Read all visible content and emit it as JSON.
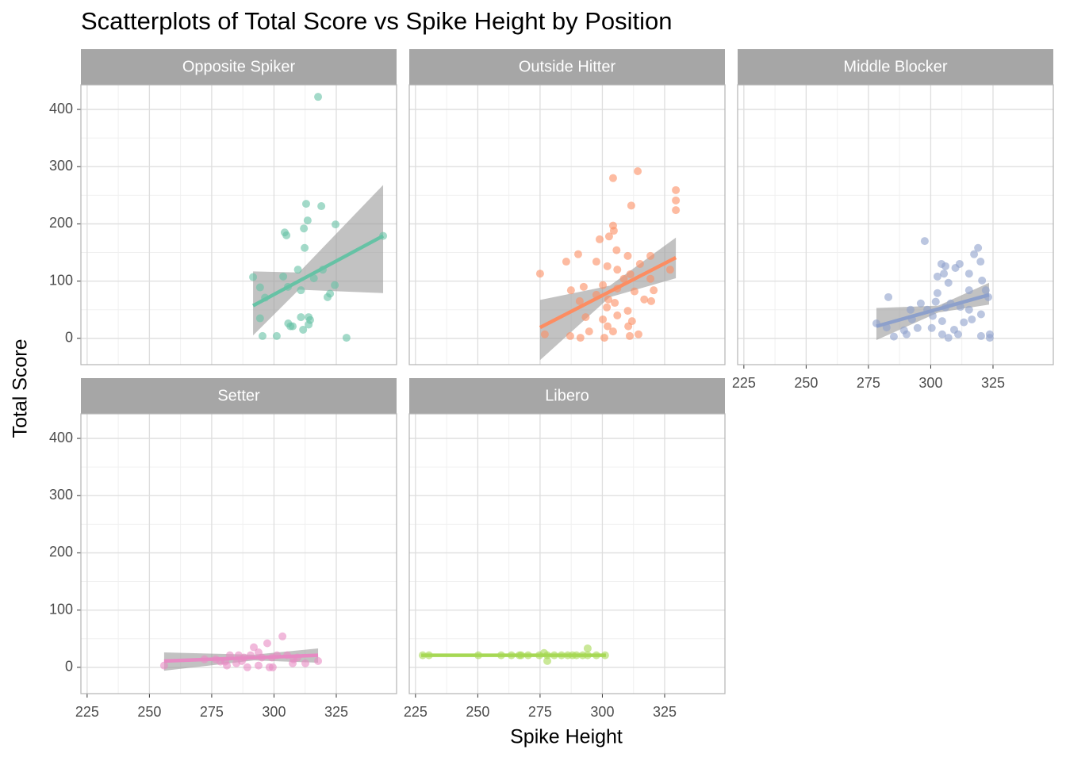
{
  "title": "Scatterplots of Total Score vs Spike Height by Position",
  "x_label": "Spike Height",
  "y_label": "Total Score",
  "chart_data": [
    {
      "type": "scatter",
      "title": "Opposite Spiker",
      "color": "#66c2a5",
      "x": [
        317.7,
        312.9,
        319,
        313.5,
        312,
        304.3,
        305,
        324.7,
        343.8,
        312.3,
        291.6,
        294.4,
        296.4,
        303.7,
        309.6,
        319.6,
        316,
        310.8,
        305.6,
        324.4,
        322.5,
        321.5,
        294.4,
        313.9,
        314.5,
        310.8,
        305.7,
        306.6,
        307.5,
        313.9,
        311.7,
        295.4,
        301.1,
        329.1
      ],
      "y": [
        422,
        235,
        231,
        206,
        192,
        185,
        180,
        199,
        179,
        158,
        107,
        89,
        71,
        108,
        120,
        120,
        105,
        84,
        90,
        93,
        78,
        72,
        35,
        37,
        32,
        37,
        26,
        21,
        21,
        24,
        15,
        4,
        4,
        1
      ],
      "fit": {
        "x": [
          291.6,
          343.8
        ],
        "y": [
          57,
          179
        ]
      },
      "band": {
        "x": [
          291.6,
          310,
          343.8
        ],
        "lower": [
          5,
          85,
          79
        ],
        "upper": [
          117,
          115,
          268
        ]
      },
      "xlim": [
        222.5,
        349.2
      ],
      "ylim": [
        -46,
        443
      ],
      "xticks": [
        225,
        250,
        275,
        300,
        325
      ],
      "yticks": [
        0,
        100,
        200,
        300,
        400
      ],
      "grid": true
    },
    {
      "type": "scatter",
      "title": "Outside Hitter",
      "color": "#fc8d62",
      "x": [
        314.2,
        304.3,
        329.5,
        329.5,
        329.5,
        311.6,
        304.3,
        304.6,
        302.7,
        298.9,
        290.3,
        297.6,
        285.5,
        305.7,
        310.2,
        319.3,
        315.1,
        275,
        302,
        306,
        311.2,
        308.6,
        300.2,
        292.5,
        306,
        319.3,
        320.6,
        312.9,
        316.8,
        319.6,
        297.6,
        302.4,
        287.4,
        305,
        301.8,
        290.9,
        310.2,
        306,
        293.3,
        300.2,
        311.9,
        294.7,
        304.3,
        302.1,
        310.4,
        276.9,
        287.1,
        291.2,
        300.8,
        311,
        314.5,
        327.2
      ],
      "y": [
        292,
        280,
        259,
        241,
        224,
        232,
        197,
        188,
        178,
        173,
        147,
        134,
        134,
        154,
        144,
        144,
        130,
        113,
        126,
        120,
        112,
        104,
        93,
        90,
        87,
        104,
        84,
        82,
        68,
        65,
        76,
        68,
        84,
        62,
        54,
        65,
        48,
        40,
        37,
        33,
        30,
        12,
        12,
        21,
        21,
        7,
        4,
        1,
        1,
        4,
        7,
        120
      ],
      "fit": {
        "x": [
          275,
          329.5
        ],
        "y": [
          19,
          141
        ]
      },
      "band": {
        "x": [
          275,
          303,
          329.5
        ],
        "lower": [
          -38,
          72,
          105
        ],
        "upper": [
          67,
          92,
          176
        ]
      },
      "xlim": [
        222.5,
        349.2
      ],
      "ylim": [
        -46,
        443
      ],
      "xticks": [
        225,
        250,
        275,
        300,
        325
      ],
      "yticks": [
        0,
        100,
        200,
        300,
        400
      ],
      "grid": true
    },
    {
      "type": "scatter",
      "title": "Middle Blocker",
      "color": "#8da0cb",
      "x": [
        297.6,
        319,
        317.4,
        320,
        304.3,
        305.9,
        311.6,
        305.3,
        315.4,
        309.9,
        302.7,
        320.6,
        307.1,
        315.4,
        322.1,
        283,
        302.7,
        296,
        302,
        308,
        311.9,
        323.1,
        291.9,
        298.6,
        305.9,
        315.4,
        320.2,
        292.5,
        300.8,
        304.6,
        313.3,
        316.5,
        278.2,
        282.3,
        289.3,
        294.7,
        300.4,
        309.4,
        285.2,
        290.3,
        304.6,
        307.1,
        311,
        320.2,
        323.7,
        323.7
      ],
      "y": [
        170,
        158,
        147,
        134,
        130,
        126,
        130,
        113,
        113,
        123,
        108,
        101,
        97,
        84,
        84,
        72,
        79,
        61,
        64,
        61,
        55,
        72,
        50,
        50,
        54,
        50,
        42,
        33,
        39,
        30,
        28,
        33,
        26,
        19,
        14,
        18,
        18,
        15,
        3,
        7,
        7,
        1,
        7,
        4,
        7,
        1
      ],
      "fit": {
        "x": [
          278.2,
          323.4
        ],
        "y": [
          21,
          76
        ]
      },
      "band": {
        "x": [
          278.2,
          303,
          323.4
        ],
        "lower": [
          -3,
          45,
          59
        ],
        "upper": [
          53,
          57,
          97
        ]
      },
      "xlim": [
        222.5,
        349.2
      ],
      "ylim": [
        -46,
        443
      ],
      "xticks": [
        225,
        250,
        275,
        300,
        325
      ],
      "yticks": [
        0,
        100,
        200,
        300,
        400
      ],
      "grid": true
    },
    {
      "type": "scatter",
      "title": "Setter",
      "color": "#e78ac3",
      "x": [
        255.9,
        272.1,
        276.6,
        282.3,
        280.4,
        278.5,
        284.9,
        281.1,
        288,
        290.6,
        291.9,
        293.8,
        297.3,
        303.4,
        295.1,
        299.2,
        301.2,
        305.3,
        307.8,
        309.4,
        317.7,
        312.6,
        307.5,
        298.2,
        299.5,
        289.3,
        293.8,
        285.8,
        287.1
      ],
      "y": [
        3,
        14,
        14,
        21,
        10,
        10,
        7,
        3,
        17,
        21,
        35,
        26,
        42,
        54,
        17,
        17,
        21,
        21,
        14,
        17,
        11,
        7,
        7,
        0,
        0,
        0,
        3,
        21,
        11
      ],
      "fit": {
        "x": [
          255.9,
          317.7
        ],
        "y": [
          11,
          21
        ]
      },
      "band": {
        "x": [
          255.9,
          292,
          317.7
        ],
        "lower": [
          -6,
          12,
          8
        ],
        "upper": [
          26,
          22,
          33
        ]
      },
      "xlim": [
        222.5,
        349.2
      ],
      "ylim": [
        -46,
        443
      ],
      "xticks": [
        225,
        250,
        275,
        300,
        325
      ],
      "yticks": [
        0,
        100,
        200,
        300,
        400
      ],
      "grid": true
    },
    {
      "type": "scatter",
      "title": "Libero",
      "color": "#a6d854",
      "x": [
        227.9,
        230.4,
        250.2,
        259.4,
        263.5,
        267.4,
        270.2,
        274.7,
        277.9,
        280.7,
        283.6,
        286.1,
        289.6,
        294.1,
        297.6,
        301.1,
        294.1,
        277.9,
        266.7,
        276.6,
        288,
        292.1
      ],
      "y": [
        21,
        21,
        21,
        21,
        21,
        21,
        21,
        21,
        21,
        21,
        21,
        21,
        21,
        21,
        21,
        21,
        33,
        11,
        21,
        25,
        21,
        21
      ],
      "fit": {
        "x": [
          227.3,
          301.4
        ],
        "y": [
          21,
          21
        ]
      },
      "band": {
        "x": [
          227.3,
          301.4
        ],
        "lower": [
          19,
          19
        ],
        "upper": [
          23,
          23
        ]
      },
      "xlim": [
        222.5,
        349.2
      ],
      "ylim": [
        -46,
        443
      ],
      "xticks": [
        225,
        250,
        275,
        300,
        325
      ],
      "yticks": [
        0,
        100,
        200,
        300,
        400
      ],
      "grid": true
    }
  ]
}
